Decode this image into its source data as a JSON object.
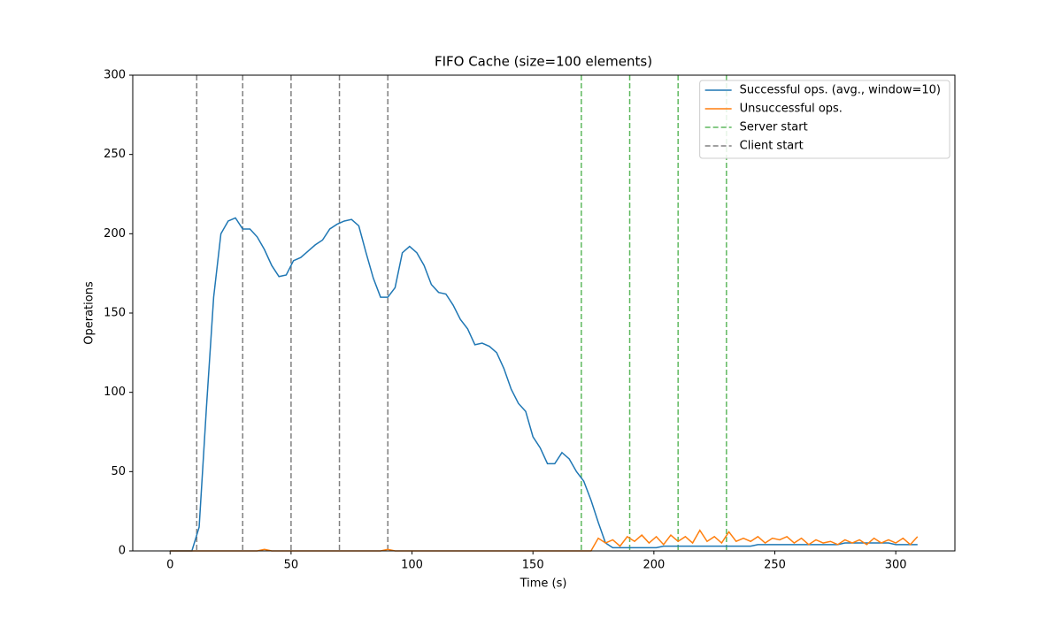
{
  "chart_data": {
    "type": "line",
    "title": "FIFO Cache (size=100 elements)",
    "xlabel": "Time (s)",
    "ylabel": "Operations",
    "xlim": [
      -15.45,
      324.45
    ],
    "ylim": [
      0,
      300
    ],
    "xticks": [
      0,
      50,
      100,
      150,
      200,
      250,
      300
    ],
    "yticks": [
      0,
      50,
      100,
      150,
      200,
      250,
      300
    ],
    "legend": "upper right",
    "x": [
      0,
      3,
      6,
      9,
      12,
      15,
      18,
      21,
      24,
      27,
      30,
      33,
      36,
      39,
      42,
      45,
      48,
      51,
      54,
      57,
      60,
      63,
      66,
      69,
      72,
      75,
      78,
      81,
      84,
      87,
      90,
      93,
      96,
      99,
      102,
      105,
      108,
      111,
      114,
      117,
      120,
      123,
      126,
      129,
      132,
      135,
      138,
      141,
      144,
      147,
      150,
      153,
      156,
      159,
      162,
      165,
      168,
      171,
      174,
      177,
      180,
      183,
      186,
      189,
      192,
      195,
      198,
      201,
      204,
      207,
      210,
      213,
      216,
      219,
      222,
      225,
      228,
      231,
      234,
      237,
      240,
      243,
      246,
      249,
      252,
      255,
      258,
      261,
      264,
      267,
      270,
      273,
      276,
      279,
      282,
      285,
      288,
      291,
      294,
      297,
      300,
      303,
      306,
      309
    ],
    "series": [
      {
        "name": "Successful ops. (avg., window=10)",
        "color": "#1f77b4",
        "values": [
          0,
          0,
          0,
          0,
          15,
          90,
          160,
          200,
          208,
          210,
          203,
          203,
          198,
          190,
          180,
          173,
          174,
          183,
          185,
          189,
          193,
          196,
          203,
          206,
          208,
          209,
          205,
          188,
          172,
          160,
          160,
          166,
          188,
          192,
          188,
          180,
          168,
          163,
          162,
          155,
          146,
          140,
          130,
          131,
          129,
          125,
          115,
          102,
          93,
          88,
          72,
          65,
          55,
          55,
          62,
          58,
          50,
          44,
          32,
          18,
          5,
          2,
          2,
          2,
          2,
          2,
          2,
          2,
          3,
          3,
          3,
          3,
          3,
          3,
          3,
          3,
          3,
          3,
          3,
          3,
          3,
          4,
          4,
          4,
          4,
          4,
          4,
          4,
          4,
          4,
          4,
          4,
          4,
          5,
          5,
          5,
          5,
          5,
          5,
          5,
          4,
          4,
          4,
          4
        ]
      },
      {
        "name": "Unsuccessful ops.",
        "color": "#ff7f0e",
        "values": [
          0,
          0,
          0,
          0,
          0,
          0,
          0,
          0,
          0,
          0,
          0,
          0,
          0,
          1,
          0,
          0,
          0,
          0,
          0,
          0,
          0,
          0,
          0,
          0,
          0,
          0,
          0,
          0,
          0,
          0,
          1,
          0,
          0,
          0,
          0,
          0,
          0,
          0,
          0,
          0,
          0,
          0,
          0,
          0,
          0,
          0,
          0,
          0,
          0,
          0,
          0,
          0,
          0,
          0,
          0,
          0,
          0,
          0,
          0,
          8,
          5,
          7,
          3,
          9,
          6,
          10,
          5,
          9,
          4,
          10,
          6,
          9,
          5,
          13,
          6,
          9,
          5,
          12,
          6,
          8,
          6,
          9,
          5,
          8,
          7,
          9,
          5,
          8,
          4,
          7,
          5,
          6,
          4,
          7,
          5,
          7,
          4,
          8,
          5,
          7,
          5,
          8,
          4,
          9
        ]
      }
    ],
    "vlines": [
      {
        "name": "Server start",
        "color": "#5fb85f",
        "x": [
          170,
          190,
          210,
          230
        ]
      },
      {
        "name": "Client start",
        "color": "#808080",
        "x": [
          11,
          30,
          50,
          70,
          90
        ]
      }
    ]
  }
}
